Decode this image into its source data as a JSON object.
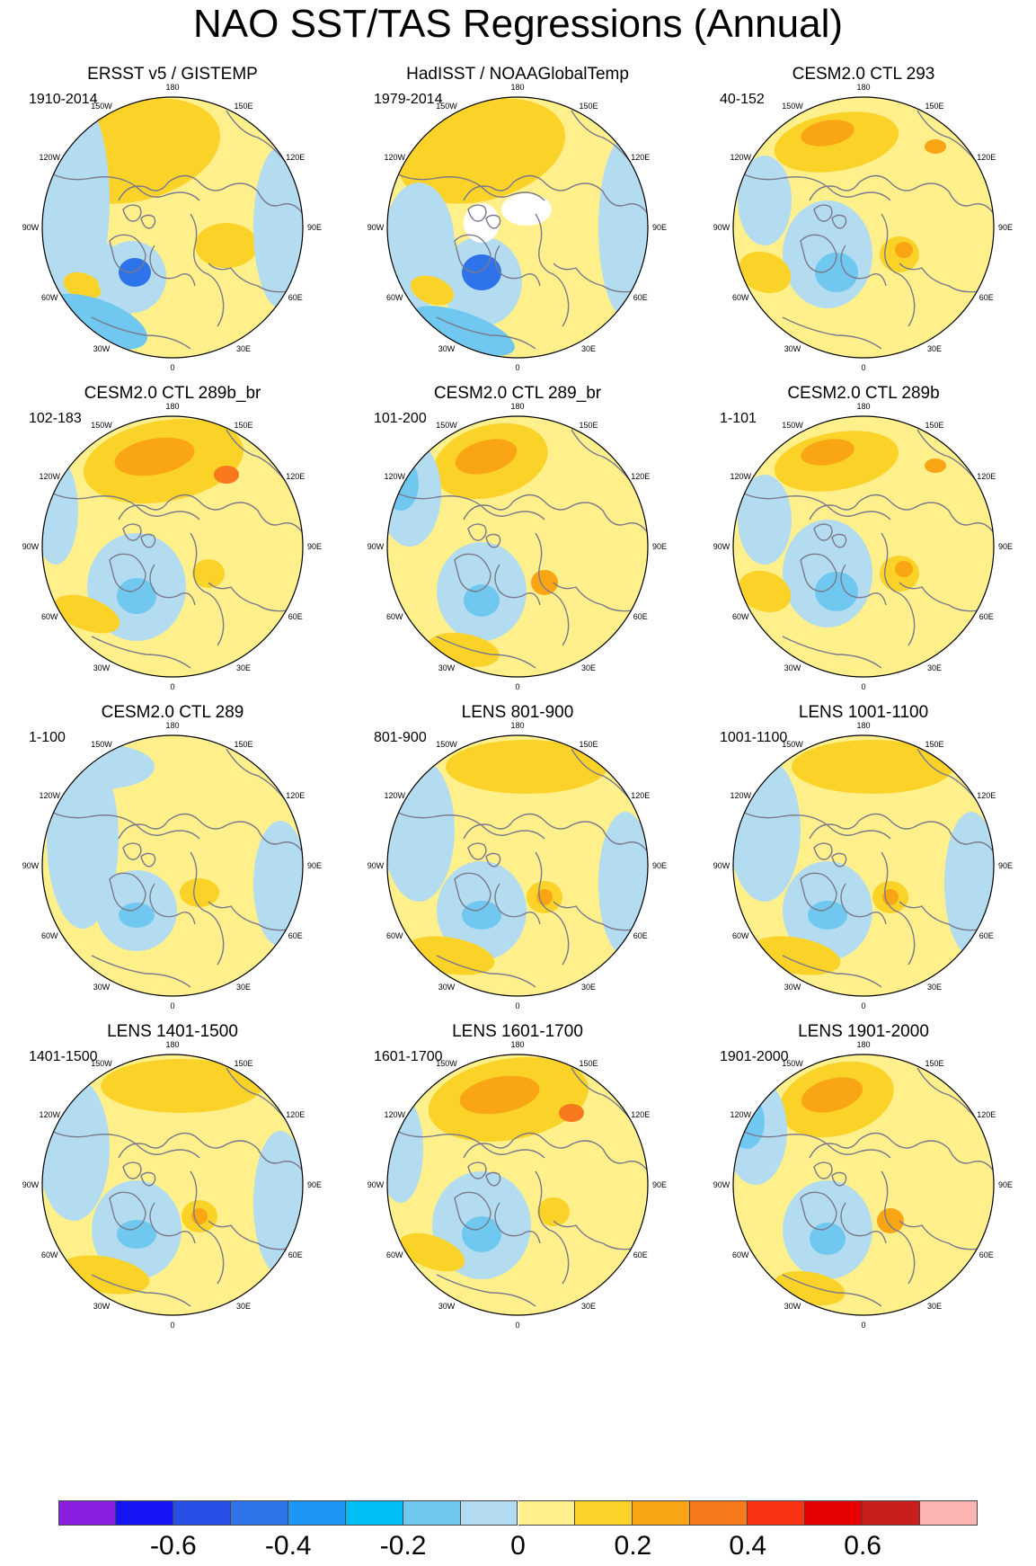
{
  "title": "NAO SST/TAS Regressions (Annual)",
  "lon_labels": [
    "180",
    "150E",
    "120E",
    "90E",
    "60E",
    "30E",
    "0",
    "30W",
    "60W",
    "90W",
    "120W",
    "150W"
  ],
  "panels": [
    {
      "title": "ERSST v5 / GISTEMP",
      "years": "1910-2014",
      "pattern": "obs_long"
    },
    {
      "title": "HadISST / NOAAGlobalTemp",
      "years": "1979-2014",
      "pattern": "obs_short"
    },
    {
      "title": "CESM2.0 CTL 293",
      "years": "40-152",
      "pattern": "model_a"
    },
    {
      "title": "CESM2.0 CTL 289b_br",
      "years": "102-183",
      "pattern": "model_b"
    },
    {
      "title": "CESM2.0 CTL 289_br",
      "years": "101-200",
      "pattern": "model_c"
    },
    {
      "title": "CESM2.0 CTL 289b",
      "years": "1-101",
      "pattern": "model_a"
    },
    {
      "title": "CESM2.0 CTL 289",
      "years": "1-100",
      "pattern": "model_weak"
    },
    {
      "title": "LENS 801-900",
      "years": "801-900",
      "pattern": "lens"
    },
    {
      "title": "LENS 1001-1100",
      "years": "1001-1100",
      "pattern": "lens"
    },
    {
      "title": "LENS 1401-1500",
      "years": "1401-1500",
      "pattern": "lens"
    },
    {
      "title": "LENS 1601-1700",
      "years": "1601-1700",
      "pattern": "model_b"
    },
    {
      "title": "LENS 1901-2000",
      "years": "1901-2000",
      "pattern": "model_c"
    }
  ],
  "colorbar": {
    "colors": [
      "#8a1fe0",
      "#1414f5",
      "#2850e6",
      "#2f73ea",
      "#1e96f5",
      "#00bef5",
      "#70c8f0",
      "#b4dcf0",
      "#fff08c",
      "#fad228",
      "#faa514",
      "#f8781e",
      "#fa3214",
      "#e60000",
      "#c81e1e",
      "#ffb4b4"
    ],
    "tick_labels": [
      {
        "label": "-0.6",
        "at_boundary": 2
      },
      {
        "label": "-0.4",
        "at_boundary": 4
      },
      {
        "label": "-0.2",
        "at_boundary": 6
      },
      {
        "label": "0",
        "at_boundary": 8
      },
      {
        "label": "0.2",
        "at_boundary": 10
      },
      {
        "label": "0.4",
        "at_boundary": 12
      },
      {
        "label": "0.6",
        "at_boundary": 14
      }
    ]
  },
  "map_colors": {
    "background_positive": "#fff08c",
    "negative_weak": "#b4dcf0",
    "negative_mid": "#70c8f0",
    "negative_strong": "#2f73ea",
    "positive_mid": "#fad228",
    "positive_strong": "#faa514",
    "positive_max": "#f8781e",
    "land_outline": "#7a7a8c",
    "missing": "#ffffff"
  }
}
